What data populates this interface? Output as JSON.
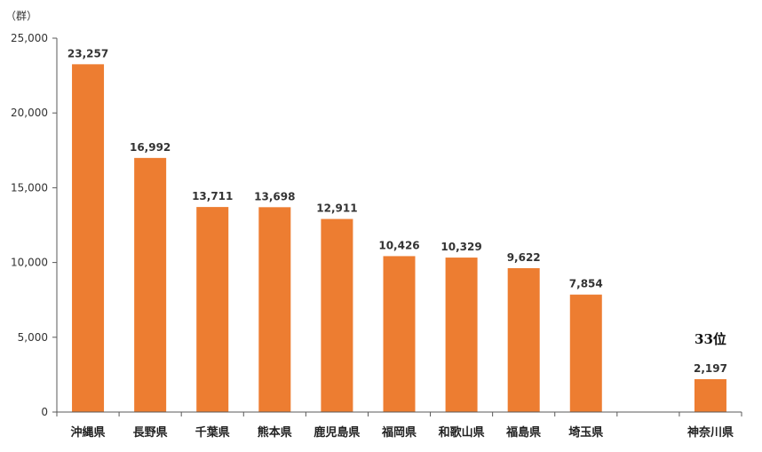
{
  "chart_data": {
    "type": "bar",
    "unit_label": "（群）",
    "categories": [
      "沖縄県",
      "長野県",
      "千葉県",
      "熊本県",
      "鹿児島県",
      "福岡県",
      "和歌山県",
      "福島県",
      "埼玉県",
      "",
      "神奈川県"
    ],
    "values": [
      23257,
      16992,
      13711,
      13698,
      12911,
      10426,
      10329,
      9622,
      7854,
      null,
      2197
    ],
    "value_labels": [
      "23,257",
      "16,992",
      "13,711",
      "13,698",
      "12,911",
      "10,426",
      "10,329",
      "9,622",
      "7,854",
      "",
      "2,197"
    ],
    "ylim": [
      0,
      25000
    ],
    "yticks": [
      0,
      5000,
      10000,
      15000,
      20000,
      25000
    ],
    "ytick_labels": [
      "0",
      "5,000",
      "10,000",
      "15,000",
      "20,000",
      "25,000"
    ],
    "annotation": {
      "category_index": 10,
      "text": "33位"
    },
    "grid": false,
    "bar_color": "#ED7D31",
    "axis_color": "#595959"
  }
}
